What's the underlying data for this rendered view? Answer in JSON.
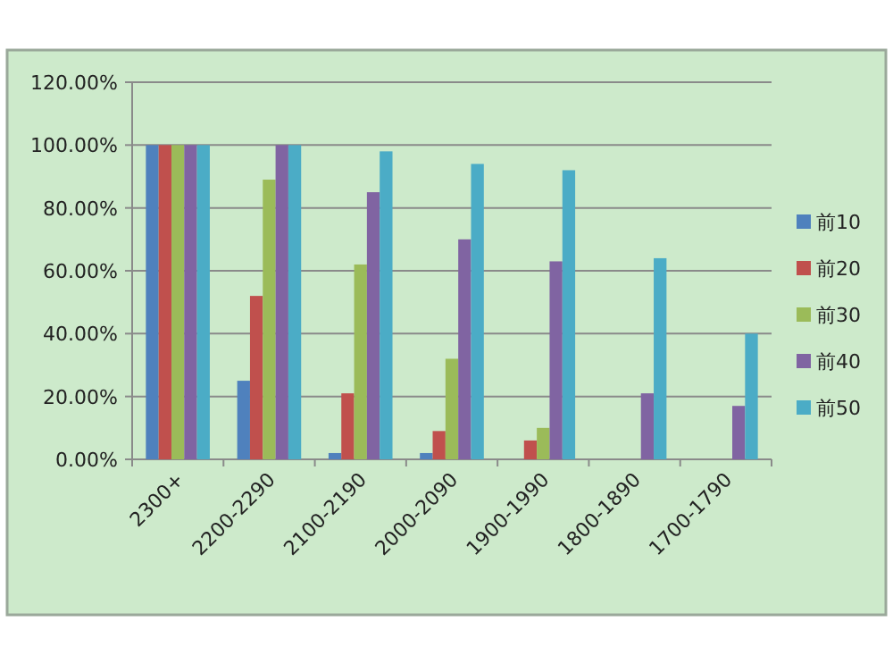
{
  "chart_data": {
    "type": "bar",
    "categories": [
      "2300+",
      "2200-2290",
      "2100-2190",
      "2000-2090",
      "1900-1990",
      "1800-1890",
      "1700-1790"
    ],
    "series": [
      {
        "name": "前10",
        "color": "#4f81bd",
        "values": [
          100,
          25,
          2,
          2,
          0,
          0,
          0
        ]
      },
      {
        "name": "前20",
        "color": "#c0504d",
        "values": [
          100,
          52,
          21,
          9,
          6,
          0,
          0
        ]
      },
      {
        "name": "前30",
        "color": "#9bbb59",
        "values": [
          100,
          89,
          62,
          32,
          10,
          0,
          0
        ]
      },
      {
        "name": "前40",
        "color": "#8064a2",
        "values": [
          100,
          100,
          85,
          70,
          63,
          21,
          17
        ]
      },
      {
        "name": "前50",
        "color": "#4bacc6",
        "values": [
          100,
          100,
          98,
          94,
          92,
          64,
          40
        ]
      }
    ],
    "ylim": [
      0,
      120
    ],
    "yticks": [
      {
        "value": 0,
        "label": "0.00%"
      },
      {
        "value": 20,
        "label": "20.00%"
      },
      {
        "value": 40,
        "label": "40.00%"
      },
      {
        "value": 60,
        "label": "60.00%"
      },
      {
        "value": 80,
        "label": "80.00%"
      },
      {
        "value": 100,
        "label": "100.00%"
      },
      {
        "value": 120,
        "label": "120.00%"
      }
    ],
    "grid": "y",
    "legend": "right"
  }
}
